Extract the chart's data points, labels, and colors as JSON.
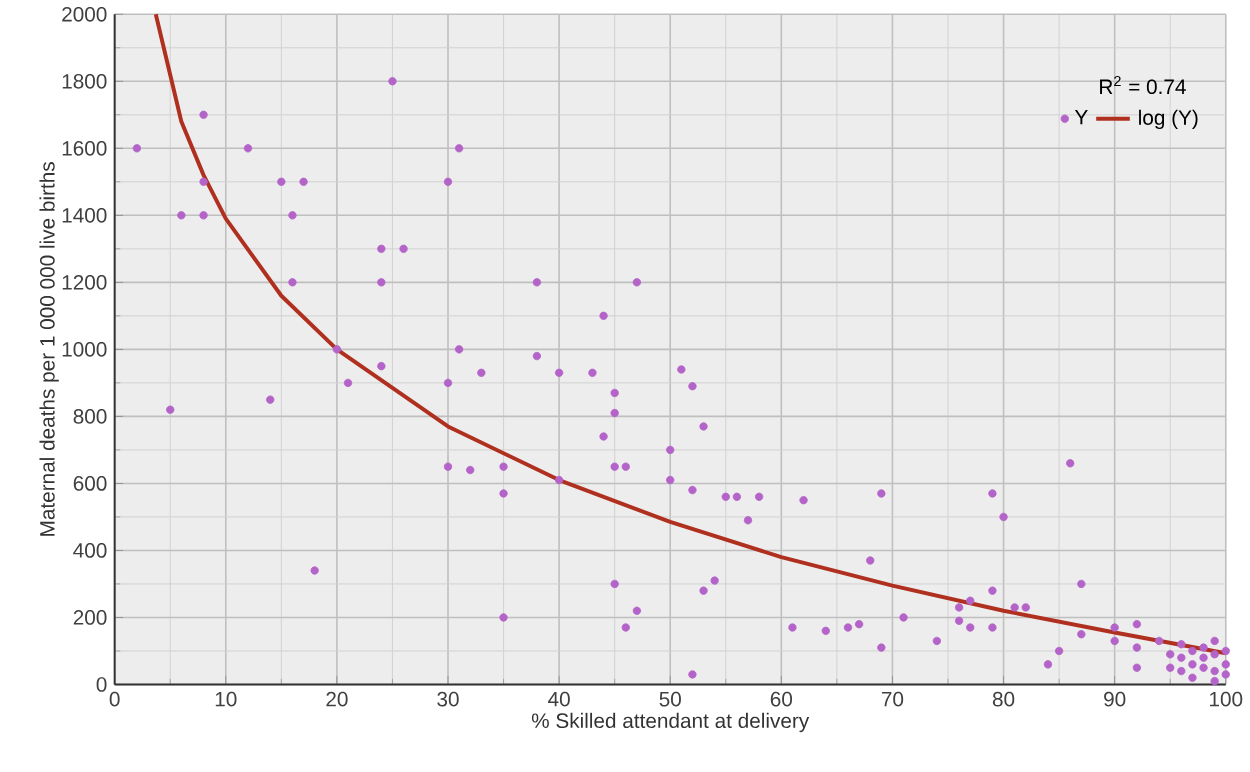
{
  "chart_data": {
    "type": "scatter",
    "xlabel": "% Skilled attendant at delivery",
    "ylabel": "Maternal deaths per 1 000 000 live births",
    "legend_title": "R$^{2}$ = 0.74",
    "legend": "top right",
    "grid": true,
    "xlim": [
      0,
      100
    ],
    "ylim": [
      0,
      2000
    ],
    "xticks": [
      0,
      10,
      20,
      30,
      40,
      50,
      60,
      70,
      80,
      90,
      100
    ],
    "yticks": [
      0,
      200,
      400,
      600,
      800,
      1000,
      1200,
      1400,
      1600,
      1800,
      2000
    ],
    "series": [
      {
        "name": "Y",
        "marker": "circle",
        "color": "#b464c8",
        "x": [
          2,
          5,
          6,
          8,
          8,
          8,
          12,
          14,
          15,
          16,
          17,
          16,
          18,
          20,
          21,
          24,
          24,
          26,
          24,
          25,
          30,
          31,
          31,
          30,
          30,
          32,
          33,
          38,
          38,
          40,
          43,
          44,
          47,
          45,
          45,
          44,
          45,
          46,
          35,
          35,
          40,
          35,
          45,
          47,
          46,
          50,
          50,
          51,
          52,
          53,
          52,
          55,
          56,
          58,
          57,
          62,
          54,
          53,
          52,
          61,
          64,
          66,
          67,
          68,
          69,
          69,
          71,
          74,
          76,
          76,
          77,
          77,
          79,
          79,
          79,
          80,
          81,
          82,
          84,
          85,
          86,
          87,
          87,
          90,
          90,
          92,
          92,
          92,
          94,
          95,
          95,
          96,
          96,
          96,
          97,
          97,
          97,
          98,
          98,
          98,
          99,
          99,
          99,
          99,
          100,
          100,
          100
        ],
        "values": [
          1600,
          820,
          1400,
          1700,
          1500,
          1400,
          1600,
          850,
          1500,
          1400,
          1500,
          1200,
          340,
          1000,
          900,
          950,
          1300,
          1300,
          1200,
          1800,
          1500,
          1600,
          1000,
          900,
          650,
          640,
          930,
          1200,
          980,
          930,
          930,
          1100,
          1200,
          870,
          810,
          740,
          650,
          650,
          650,
          570,
          610,
          200,
          300,
          220,
          170,
          700,
          610,
          940,
          890,
          770,
          580,
          560,
          560,
          560,
          490,
          550,
          310,
          280,
          30,
          170,
          160,
          170,
          180,
          370,
          570,
          110,
          200,
          130,
          230,
          190,
          250,
          170,
          570,
          280,
          170,
          500,
          230,
          230,
          60,
          100,
          660,
          300,
          150,
          170,
          130,
          180,
          110,
          50,
          130,
          90,
          50,
          120,
          80,
          40,
          100,
          60,
          20,
          110,
          80,
          50,
          130,
          90,
          40,
          10,
          100,
          60,
          30
        ]
      },
      {
        "name": "log (Y)",
        "type": "line",
        "color": "#b03020",
        "x": [
          3.7,
          6,
          8,
          10,
          15,
          20,
          30,
          40,
          50,
          60,
          70,
          80,
          90,
          100
        ],
        "values": [
          2000,
          1680,
          1520,
          1390,
          1160,
          1000,
          770,
          610,
          485,
          380,
          295,
          220,
          155,
          93
        ]
      }
    ]
  }
}
